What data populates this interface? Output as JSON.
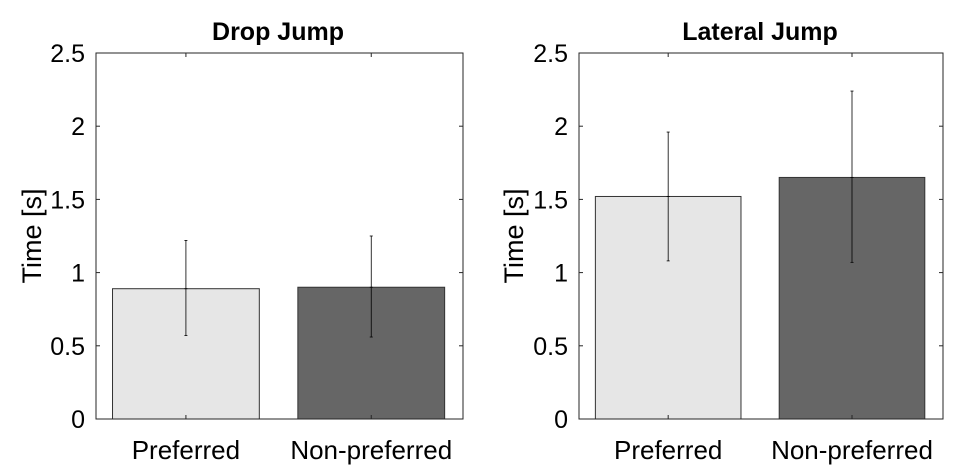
{
  "chart_data": [
    {
      "type": "bar",
      "title": "Drop Jump",
      "xlabel": "",
      "ylabel": "Time [s]",
      "ylim": [
        0,
        2.5
      ],
      "yticks": [
        0,
        0.5,
        1,
        1.5,
        2,
        2.5
      ],
      "ytick_labels": [
        "0",
        "0.5",
        "1",
        "1.5",
        "2",
        "2.5"
      ],
      "categories": [
        "Preferred",
        "Non-preferred"
      ],
      "values": [
        0.89,
        0.9
      ],
      "error_low": [
        0.57,
        0.56
      ],
      "error_high": [
        1.22,
        1.25
      ],
      "bar_colors": [
        "#e6e6e6",
        "#666666"
      ],
      "grid": false,
      "legend": "none"
    },
    {
      "type": "bar",
      "title": "Lateral Jump",
      "xlabel": "",
      "ylabel": "Time [s]",
      "ylim": [
        0,
        2.5
      ],
      "yticks": [
        0,
        0.5,
        1,
        1.5,
        2,
        2.5
      ],
      "ytick_labels": [
        "0",
        "0.5",
        "1",
        "1.5",
        "2",
        "2.5"
      ],
      "categories": [
        "Preferred",
        "Non-preferred"
      ],
      "values": [
        1.52,
        1.65
      ],
      "error_low": [
        1.08,
        1.07
      ],
      "error_high": [
        1.96,
        2.24
      ],
      "bar_colors": [
        "#e6e6e6",
        "#666666"
      ],
      "grid": false,
      "legend": "none"
    }
  ]
}
